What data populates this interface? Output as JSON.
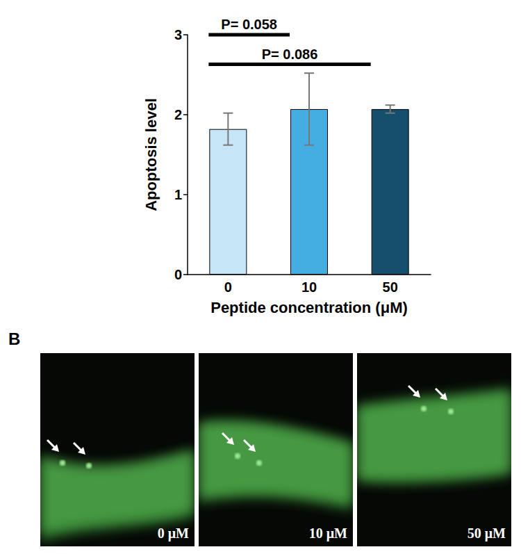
{
  "chart_data": {
    "type": "bar",
    "panel": "A",
    "categories": [
      "0",
      "10",
      "50"
    ],
    "values": [
      1.82,
      2.07,
      2.07
    ],
    "errors": [
      0.2,
      0.45,
      0.05
    ],
    "colors": [
      "#c6e6f7",
      "#44aee3",
      "#154f6e"
    ],
    "x_label": "Peptide concentration (μM)",
    "y_label": "Apoptosis level",
    "ylim": [
      0,
      3
    ],
    "yticks": [
      0,
      1,
      2,
      3
    ],
    "grid": false,
    "annotations": [
      {
        "text": "P= 0.058",
        "from": "0",
        "to": "10",
        "y": 3.0
      },
      {
        "text": "P= 0.086",
        "from": "0",
        "to": "50",
        "y": 2.63
      }
    ]
  },
  "images": {
    "panel": "B",
    "frames": [
      {
        "label": "0 μM"
      },
      {
        "label": "10 μM"
      },
      {
        "label": "50 μM"
      }
    ]
  }
}
